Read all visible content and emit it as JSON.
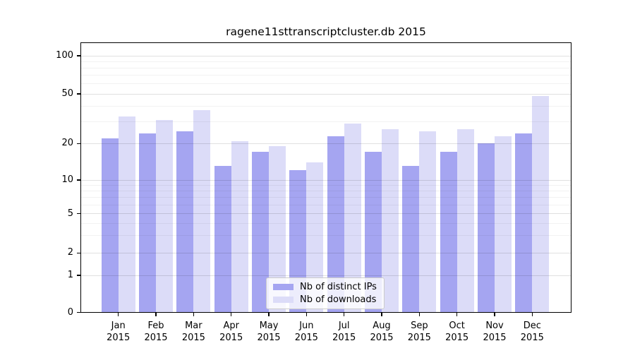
{
  "figure": {
    "title": "ragene11sttranscriptcluster.db 2015"
  },
  "chart_data": {
    "type": "bar",
    "title": "ragene11sttranscriptcluster.db 2015",
    "categories": [
      "Jan 2015",
      "Feb 2015",
      "Mar 2015",
      "Apr 2015",
      "May 2015",
      "Jun 2015",
      "Jul 2015",
      "Aug 2015",
      "Sep 2015",
      "Oct 2015",
      "Nov 2015",
      "Dec 2015"
    ],
    "series": [
      {
        "name": "Nb of distinct IPs",
        "color": "#a5a5f1",
        "values": [
          22,
          24,
          25,
          13,
          17,
          12,
          23,
          17,
          13,
          17,
          20,
          24
        ]
      },
      {
        "name": "Nb of downloads",
        "color": "#dcdcf8",
        "values": [
          33,
          31,
          37,
          21,
          19,
          14,
          29,
          26,
          25,
          26,
          23,
          48
        ]
      }
    ],
    "xlabel": "",
    "ylabel": "",
    "y_scale": "log-like (compressed below 10, linear 0-1)",
    "y_ticks": [
      0,
      1,
      2,
      5,
      10,
      20,
      50,
      100
    ],
    "y_minor_ticks": [
      3,
      4,
      6,
      7,
      8,
      9,
      30,
      40,
      60,
      70,
      80,
      90
    ],
    "grid": true,
    "legend_position": "bottom-center"
  },
  "legend": {
    "items": [
      {
        "label": "Nb of distinct IPs"
      },
      {
        "label": "Nb of downloads"
      }
    ]
  },
  "colors": {
    "distinct_ips": "#a5a5f1",
    "downloads": "#dcdcf8",
    "major_grid": "rgba(0,0,0,0.12)",
    "minor_grid": "rgba(0,0,0,0.05)",
    "axis": "#000000"
  }
}
